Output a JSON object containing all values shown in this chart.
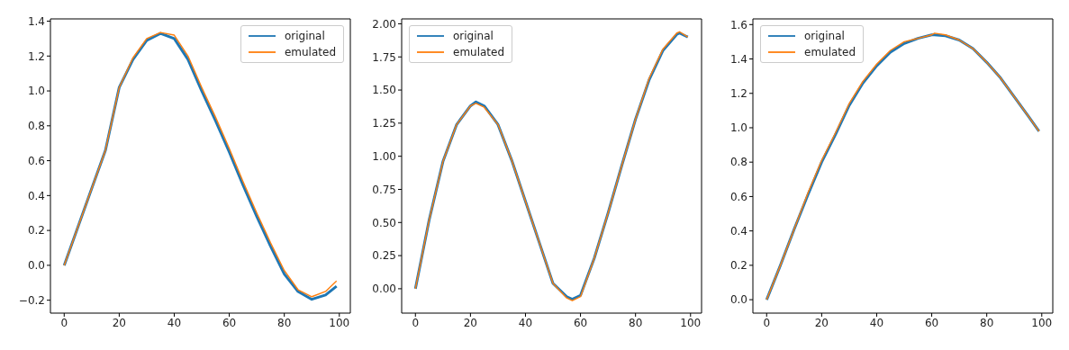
{
  "chart_data": [
    {
      "type": "line",
      "x": [
        0,
        5,
        10,
        15,
        20,
        25,
        30,
        35,
        40,
        45,
        50,
        55,
        60,
        65,
        70,
        75,
        80,
        85,
        90,
        95,
        99
      ],
      "xlim": [
        -5,
        104
      ],
      "xticks": [
        0,
        20,
        40,
        60,
        80,
        100
      ],
      "ylim": [
        -0.274,
        1.413
      ],
      "yticks": [
        {
          "value": -0.2,
          "label": "−0.2"
        },
        {
          "value": 0,
          "label": "0.0"
        },
        0.2,
        0.4,
        0.6,
        0.8,
        {
          "value": 1,
          "label": "1.0"
        },
        1.2,
        1.4
      ],
      "legend": "top right",
      "series": [
        {
          "name": "original",
          "color": "#1f77b4",
          "values": [
            0,
            0.22,
            0.44,
            0.66,
            1.02,
            1.18,
            1.29,
            1.33,
            1.3,
            1.18,
            1.0,
            0.83,
            0.65,
            0.46,
            0.28,
            0.11,
            -0.05,
            -0.15,
            -0.195,
            -0.17,
            -0.12
          ]
        },
        {
          "name": "emulated",
          "color": "#ff7f0e",
          "values": [
            0,
            0.22,
            0.44,
            0.66,
            1.02,
            1.19,
            1.3,
            1.335,
            1.32,
            1.2,
            1.02,
            0.85,
            0.67,
            0.48,
            0.3,
            0.13,
            -0.03,
            -0.14,
            -0.18,
            -0.15,
            -0.09
          ]
        }
      ]
    },
    {
      "type": "line",
      "x": [
        0,
        5,
        10,
        15,
        20,
        22,
        25,
        30,
        35,
        40,
        45,
        50,
        55,
        57,
        60,
        65,
        70,
        75,
        80,
        85,
        90,
        95,
        96,
        99
      ],
      "xlim": [
        -5,
        104
      ],
      "xticks": [
        0,
        20,
        40,
        60,
        80,
        100
      ],
      "ylim": [
        -0.184,
        2.037
      ],
      "yticks": [
        {
          "value": 0,
          "label": "0.00"
        },
        0.25,
        {
          "value": 0.5,
          "label": "0.50"
        },
        0.75,
        {
          "value": 1,
          "label": "1.00"
        },
        1.25,
        {
          "value": 1.5,
          "label": "1.50"
        },
        1.75,
        {
          "value": 2,
          "label": "2.00"
        }
      ],
      "legend": "top left",
      "series": [
        {
          "name": "original",
          "color": "#1f77b4",
          "values": [
            0,
            0.52,
            0.96,
            1.24,
            1.38,
            1.41,
            1.38,
            1.24,
            0.97,
            0.66,
            0.35,
            0.04,
            -0.06,
            -0.08,
            -0.05,
            0.23,
            0.57,
            0.93,
            1.28,
            1.58,
            1.8,
            1.92,
            1.93,
            1.9
          ]
        },
        {
          "name": "emulated",
          "color": "#ff7f0e",
          "values": [
            0,
            0.52,
            0.96,
            1.24,
            1.38,
            1.4,
            1.37,
            1.24,
            0.97,
            0.66,
            0.35,
            0.04,
            -0.07,
            -0.09,
            -0.06,
            0.23,
            0.57,
            0.93,
            1.28,
            1.59,
            1.81,
            1.93,
            1.94,
            1.9
          ]
        }
      ]
    },
    {
      "type": "line",
      "x": [
        0,
        5,
        10,
        15,
        20,
        25,
        30,
        35,
        40,
        45,
        50,
        55,
        60,
        61,
        65,
        70,
        75,
        80,
        85,
        90,
        95,
        99
      ],
      "xlim": [
        -5,
        104
      ],
      "xticks": [
        0,
        20,
        40,
        60,
        80,
        100
      ],
      "ylim": [
        -0.078,
        1.633
      ],
      "yticks": [
        {
          "value": 0,
          "label": "0.0"
        },
        0.2,
        0.4,
        0.6,
        0.8,
        {
          "value": 1,
          "label": "1.0"
        },
        1.2,
        1.4,
        1.6
      ],
      "legend": "top left",
      "series": [
        {
          "name": "original",
          "color": "#1f77b4",
          "values": [
            0,
            0.2,
            0.41,
            0.61,
            0.8,
            0.96,
            1.13,
            1.26,
            1.36,
            1.44,
            1.49,
            1.52,
            1.54,
            1.54,
            1.535,
            1.51,
            1.46,
            1.38,
            1.29,
            1.18,
            1.07,
            0.98
          ]
        },
        {
          "name": "emulated",
          "color": "#ff7f0e",
          "values": [
            0,
            0.2,
            0.41,
            0.62,
            0.81,
            0.97,
            1.14,
            1.27,
            1.37,
            1.45,
            1.5,
            1.52,
            1.54,
            1.55,
            1.54,
            1.51,
            1.46,
            1.38,
            1.29,
            1.18,
            1.07,
            0.98
          ]
        }
      ]
    }
  ]
}
